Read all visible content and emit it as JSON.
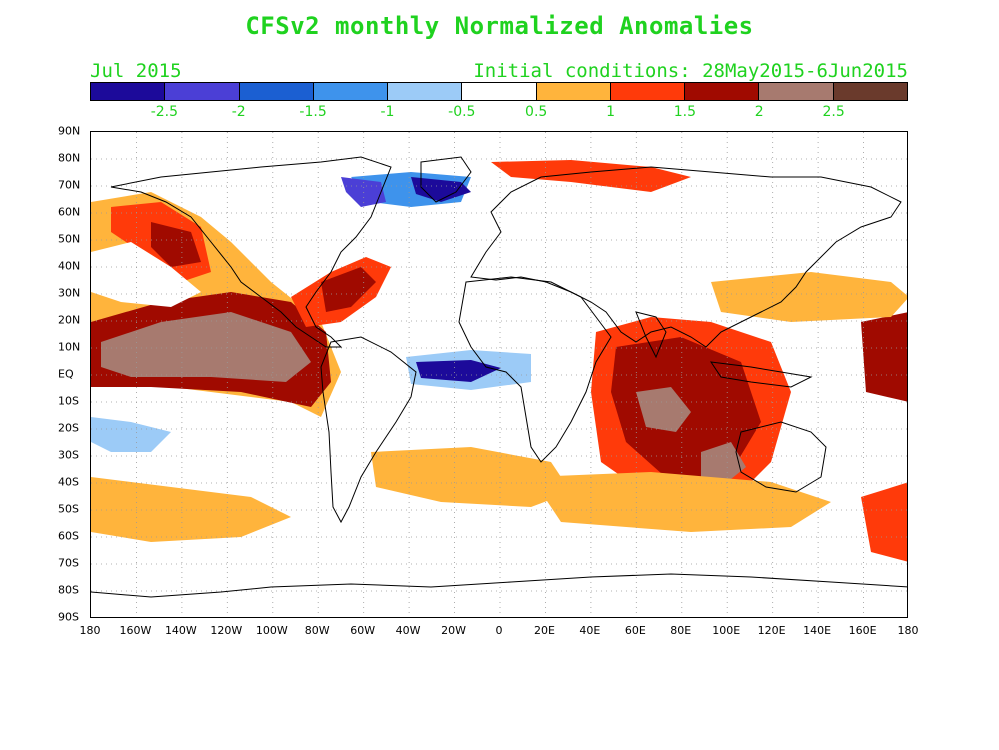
{
  "title": "CFSv2 monthly Normalized Anomalies",
  "month_label": "Jul 2015",
  "initial_conditions": "Initial conditions: 28May2015-6Jun2015",
  "colorbar": {
    "colors": [
      "#1c0a9a",
      "#4b3fd6",
      "#1b5fd2",
      "#3e93ec",
      "#9ccbf7",
      "#ffffff",
      "#ffb43c",
      "#ff3a0a",
      "#a00a00",
      "#a77a6f",
      "#6a3a2c"
    ],
    "labels": [
      "-2.5",
      "-2",
      "-1.5",
      "-1",
      "-0.5",
      "0.5",
      "1",
      "1.5",
      "2",
      "2.5"
    ]
  },
  "axes": {
    "lat_labels": [
      "90N",
      "80N",
      "70N",
      "60N",
      "50N",
      "40N",
      "30N",
      "20N",
      "10N",
      "EQ",
      "10S",
      "20S",
      "30S",
      "40S",
      "50S",
      "60S",
      "70S",
      "80S",
      "90S"
    ],
    "lon_labels": [
      "180",
      "160W",
      "140W",
      "120W",
      "100W",
      "80W",
      "60W",
      "40W",
      "20W",
      "0",
      "20E",
      "40E",
      "60E",
      "80E",
      "100E",
      "120E",
      "140E",
      "160E",
      "180"
    ]
  }
}
